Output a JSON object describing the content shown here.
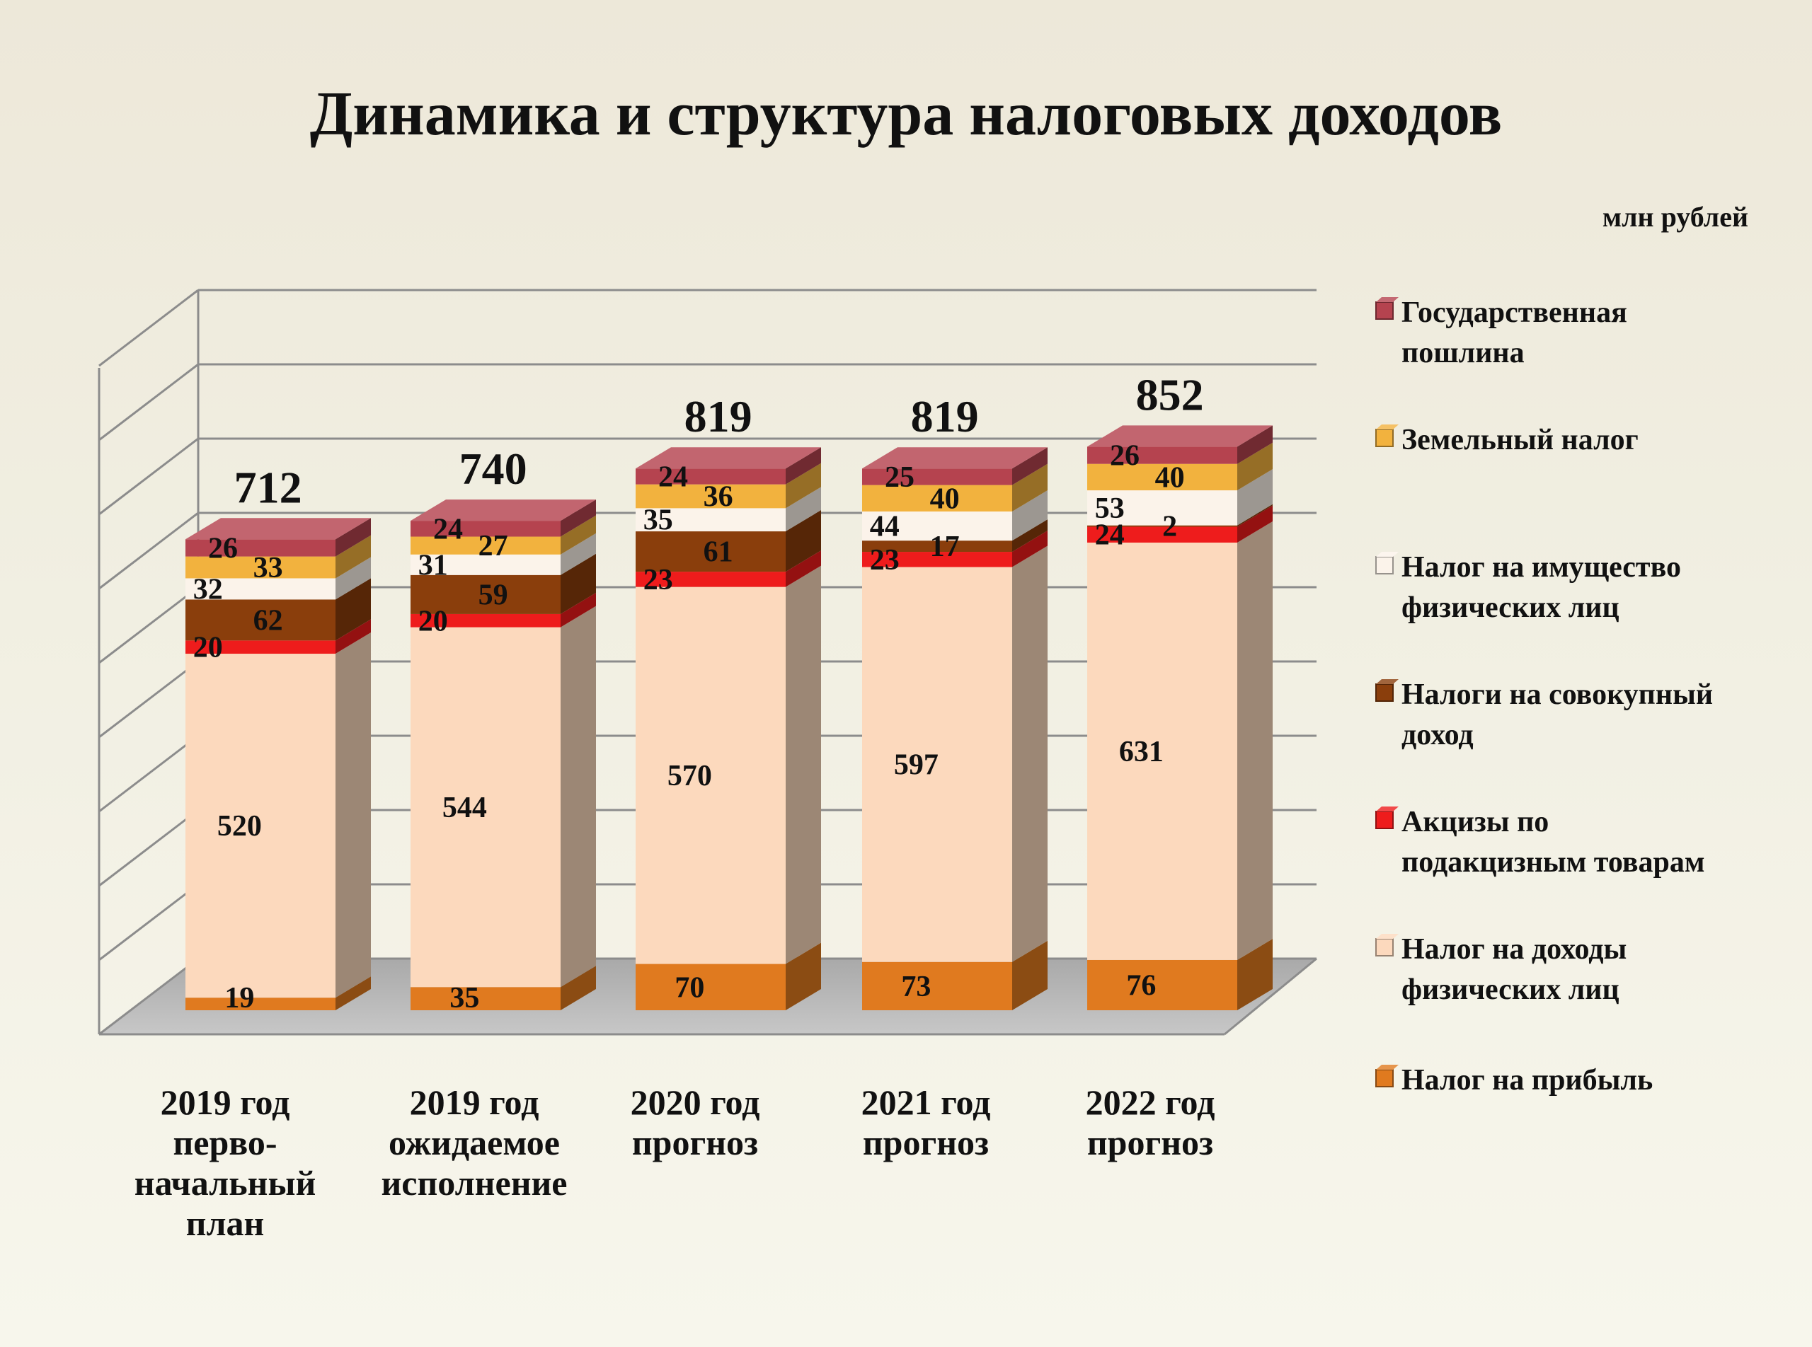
{
  "title": "Динамика  и  структура налоговых  доходов",
  "unit": "млн рублей",
  "chart_data": {
    "type": "bar",
    "stacked": true,
    "three_d": true,
    "categories": [
      [
        "2019 год",
        "перво-",
        "начальный",
        "план"
      ],
      [
        "2019 год",
        "ожидаемое",
        "исполнение"
      ],
      [
        "2020 год",
        "прогноз"
      ],
      [
        "2021 год",
        "прогноз"
      ],
      [
        "2022 год",
        "прогноз"
      ]
    ],
    "totals": [
      712,
      740,
      819,
      819,
      852
    ],
    "series": [
      {
        "name": "Налог на прибыль",
        "color": "#e07a1f",
        "values": [
          19,
          35,
          70,
          73,
          76
        ]
      },
      {
        "name": "Налог на доходы физических лиц",
        "color": "#fcd9bd",
        "values": [
          520,
          544,
          570,
          597,
          631
        ]
      },
      {
        "name": "Акцизы по подакцизным товарам",
        "color": "#ee1c1c",
        "values": [
          20,
          20,
          23,
          23,
          24
        ]
      },
      {
        "name": "Налоги на совокупный доход",
        "color": "#8a3e0c",
        "values": [
          62,
          59,
          61,
          17,
          2
        ]
      },
      {
        "name": "Налог на имущество физических лиц",
        "color": "#fbf3ea",
        "values": [
          32,
          31,
          35,
          44,
          53
        ]
      },
      {
        "name": "Земельный налог",
        "color": "#f2b23e",
        "values": [
          33,
          27,
          36,
          40,
          40
        ]
      },
      {
        "name": "Государственная пошлина",
        "color": "#b5434f",
        "values": [
          26,
          24,
          24,
          25,
          26
        ]
      }
    ],
    "legend": [
      {
        "lines": [
          "Государственная",
          "пошлина"
        ],
        "color": "#b5434f"
      },
      {
        "lines": [
          "Земельный налог"
        ],
        "color": "#f2b23e"
      },
      {
        "lines": [
          "Налог на имущество",
          "физических лиц"
        ],
        "color": "#fbf3ea"
      },
      {
        "lines": [
          "Налоги на совокупный",
          "доход"
        ],
        "color": "#8a3e0c"
      },
      {
        "lines": [
          "Акцизы по",
          "подакцизным товарам"
        ],
        "color": "#ee1c1c"
      },
      {
        "lines": [
          "Налог на доходы",
          "физических лиц"
        ],
        "color": "#fcd9bd"
      },
      {
        "lines": [
          "Налог на прибыль"
        ],
        "color": "#e07a1f"
      }
    ],
    "legend_position": "right",
    "grid": true
  }
}
